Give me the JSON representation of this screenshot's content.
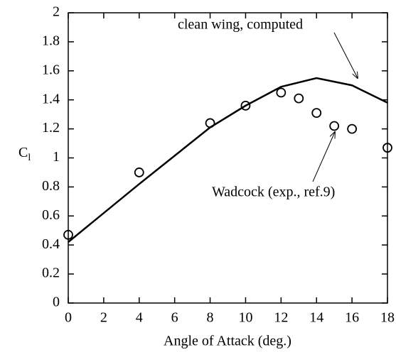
{
  "chart_data": {
    "type": "line",
    "xlabel": "Angle of Attack (deg.)",
    "ylabel": "C",
    "ylabel_subscript": "l",
    "xlim": [
      0,
      18
    ],
    "xticks": [
      0,
      2,
      4,
      6,
      8,
      10,
      12,
      14,
      16,
      18
    ],
    "ylim": [
      0,
      2
    ],
    "yticks": [
      0,
      0.2,
      0.4,
      0.6,
      0.8,
      1,
      1.2,
      1.4,
      1.6,
      1.8,
      2
    ],
    "series": [
      {
        "name": "clean wing, computed",
        "type": "line",
        "color": "#000000",
        "x": [
          0,
          4,
          8,
          10,
          12,
          14,
          16,
          18
        ],
        "values": [
          0.42,
          0.82,
          1.21,
          1.36,
          1.49,
          1.55,
          1.5,
          1.38
        ]
      },
      {
        "name": "Wadcock (exp., ref.9)",
        "type": "scatter",
        "color": "#000000",
        "x": [
          0,
          4,
          8,
          10,
          12,
          13,
          14,
          15,
          16,
          18
        ],
        "values": [
          0.47,
          0.9,
          1.24,
          1.36,
          1.45,
          1.41,
          1.31,
          1.22,
          1.2,
          1.07
        ]
      }
    ]
  }
}
